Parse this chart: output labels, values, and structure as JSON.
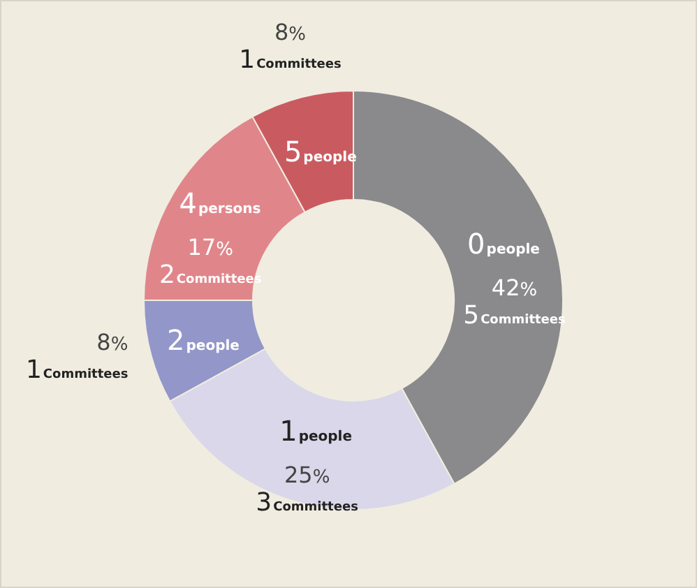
{
  "chart_data": {
    "type": "donut",
    "categories": [
      "0people",
      "1people",
      "2people",
      "4persons",
      "5people"
    ],
    "values": [
      42,
      25,
      8,
      17,
      8
    ],
    "colors": [
      "#8a8a8c",
      "#d9d7e9",
      "#9396c8",
      "#e0868b",
      "#c95b60"
    ],
    "value_labels": [
      "42%\n5Committees",
      "25%\n3Committees",
      "8%\n1Committees",
      "17%\n2Committees",
      "8%\n1Committees"
    ],
    "legend": false
  }
}
